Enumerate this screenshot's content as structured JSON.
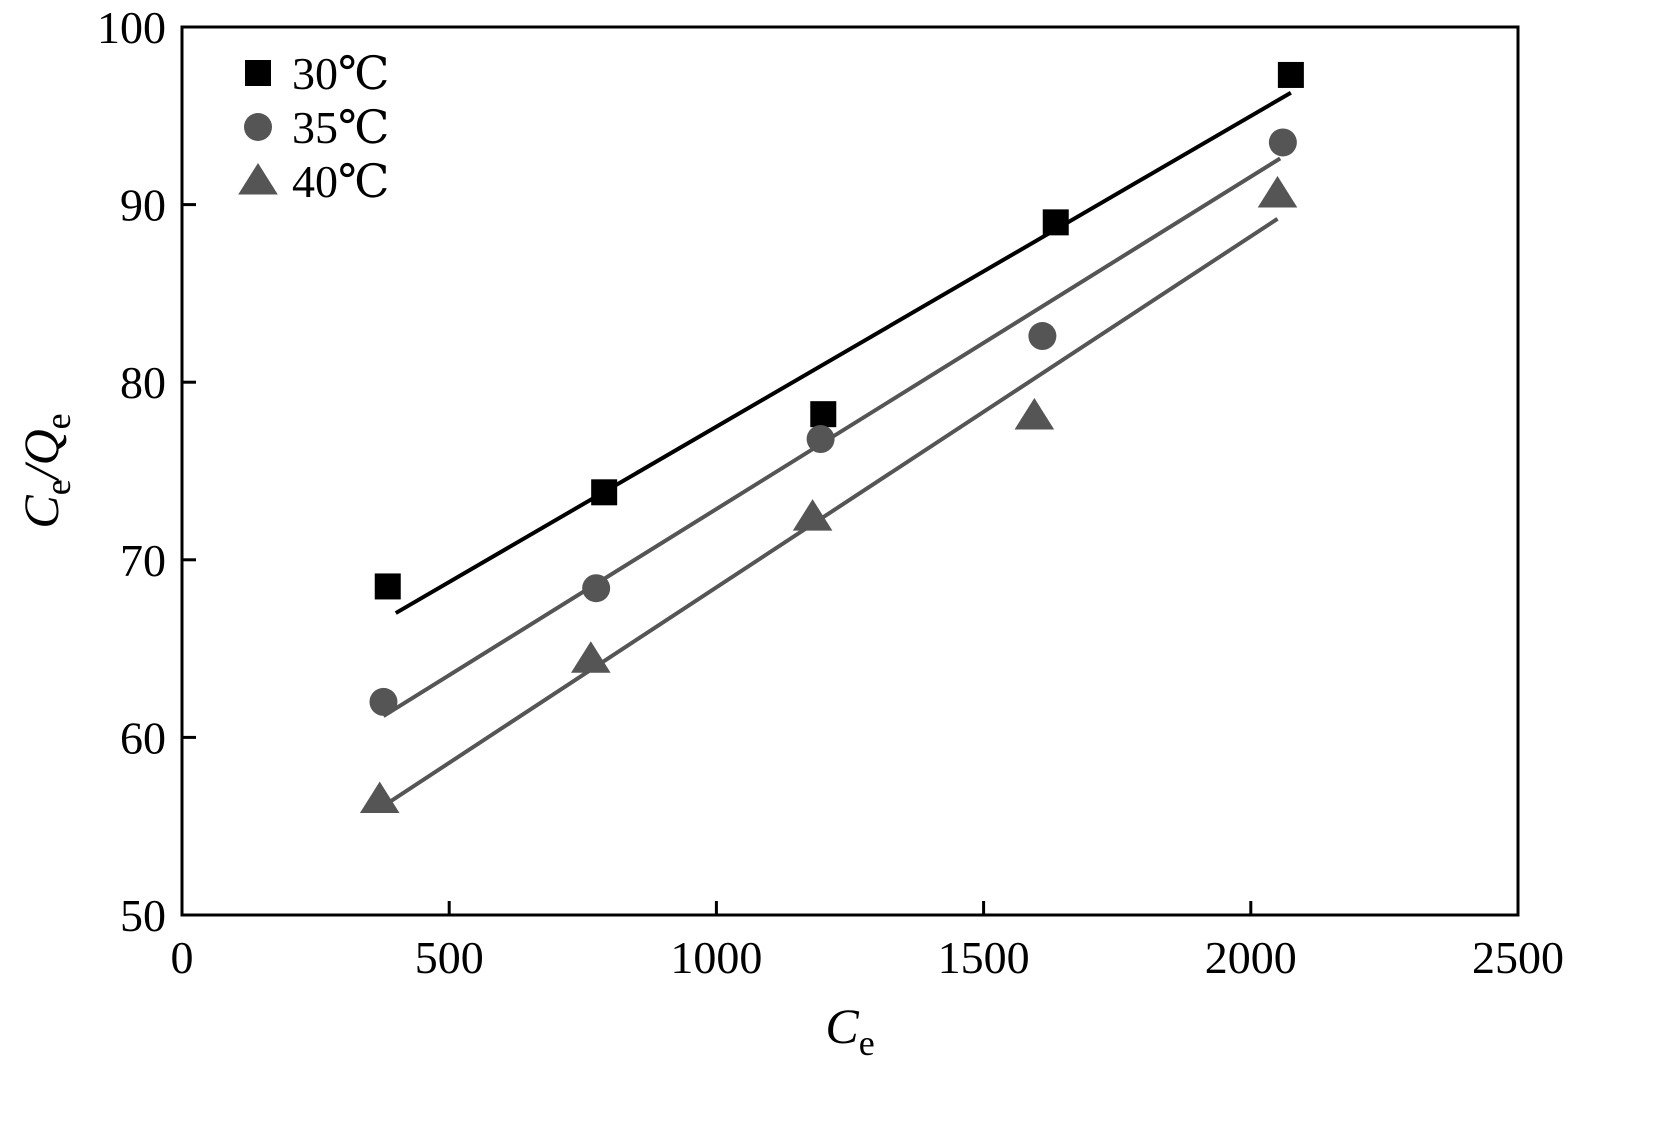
{
  "chart_data": {
    "type": "scatter",
    "title": "",
    "xlabel": {
      "main": "C",
      "sub": "e"
    },
    "ylabel": {
      "main": "C",
      "sub1": "e",
      "sep": "/Q",
      "sub2": "e"
    },
    "xlim": [
      0,
      2500
    ],
    "ylim": [
      50,
      100
    ],
    "xticks": [
      0,
      500,
      1000,
      1500,
      2000,
      2500
    ],
    "yticks": [
      50,
      60,
      70,
      80,
      90,
      100
    ],
    "grid": false,
    "legend_position": "top-left",
    "series": [
      {
        "name": "30℃",
        "marker": "square",
        "color": "#000000",
        "line_color": "#000000",
        "x": [
          385,
          790,
          1200,
          1635,
          2075
        ],
        "y": [
          68.5,
          73.8,
          78.2,
          89.0,
          97.3
        ],
        "fit": {
          "x": [
            400,
            2075
          ],
          "y": [
            67.0,
            96.3
          ]
        }
      },
      {
        "name": "35℃",
        "marker": "circle",
        "color": "#555555",
        "line_color": "#555555",
        "x": [
          377,
          775,
          1195,
          1610,
          2060
        ],
        "y": [
          62.0,
          68.4,
          76.8,
          82.6,
          93.5
        ],
        "fit": {
          "x": [
            377,
            2055
          ],
          "y": [
            61.2,
            92.6
          ]
        }
      },
      {
        "name": "40℃",
        "marker": "triangle",
        "color": "#555555",
        "line_color": "#555555",
        "x": [
          370,
          765,
          1180,
          1595,
          2050
        ],
        "y": [
          56.5,
          64.4,
          72.4,
          78.1,
          90.6
        ],
        "fit": {
          "x": [
            370,
            2050
          ],
          "y": [
            56.0,
            89.2
          ]
        }
      }
    ]
  }
}
